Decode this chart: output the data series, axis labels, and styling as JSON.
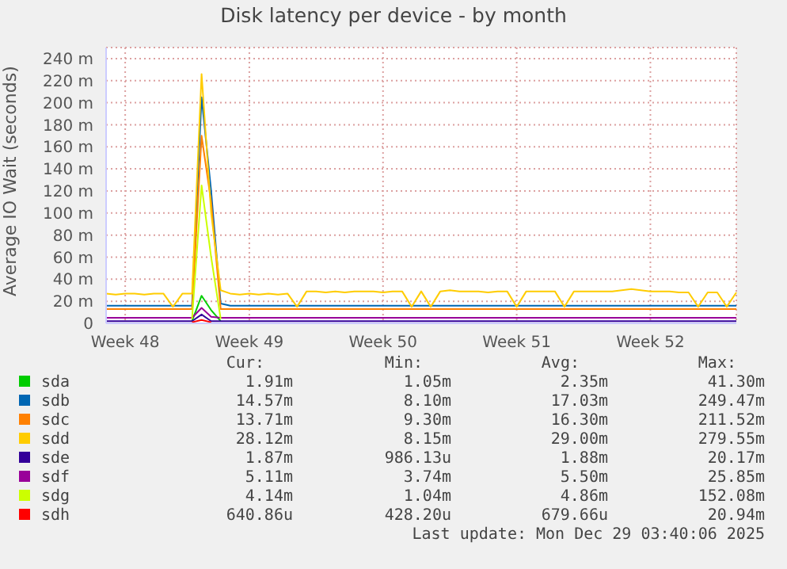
{
  "chart_data": {
    "type": "line",
    "title": "Disk latency per device - by month",
    "ylabel": "Average IO Wait (seconds)",
    "categories": [
      null,
      null,
      "Week 48",
      null,
      null,
      null,
      null,
      null,
      null,
      null,
      null,
      null,
      null,
      null,
      null,
      "Week 49",
      null,
      null,
      null,
      null,
      null,
      null,
      null,
      null,
      null,
      null,
      null,
      null,
      null,
      "Week 50",
      null,
      null,
      null,
      null,
      null,
      null,
      null,
      null,
      null,
      null,
      null,
      null,
      null,
      "Week 51",
      null,
      null,
      null,
      null,
      null,
      null,
      null,
      null,
      null,
      null,
      null,
      null,
      null,
      "Week 52",
      null,
      null,
      null,
      null,
      null,
      null,
      null,
      null,
      null
    ],
    "ylim": [
      0,
      250
    ],
    "yticks": [
      0,
      {
        "value": 20,
        "label": "20 m"
      },
      {
        "value": 40,
        "label": "40 m"
      },
      {
        "value": 60,
        "label": "60 m"
      },
      {
        "value": 80,
        "label": "80 m"
      },
      {
        "value": 100,
        "label": "100 m"
      },
      {
        "value": 120,
        "label": "120 m"
      },
      {
        "value": 140,
        "label": "140 m"
      },
      {
        "value": 160,
        "label": "160 m"
      },
      {
        "value": 180,
        "label": "180 m"
      },
      {
        "value": 200,
        "label": "200 m"
      },
      {
        "value": 220,
        "label": "220 m"
      },
      {
        "value": 240,
        "label": "240 m"
      }
    ],
    "grid": true,
    "legend": "bottom",
    "marker": "none",
    "line_style": "solid",
    "series": [
      {
        "name": "sda",
        "color": "#00cc00",
        "values": [
          null,
          null,
          null,
          null,
          null,
          null,
          null,
          null,
          null,
          2,
          25,
          12,
          2,
          null,
          null,
          null,
          null,
          null,
          null,
          null,
          null,
          null,
          null,
          null,
          null,
          null,
          null,
          null,
          null,
          null,
          null,
          null,
          null,
          null,
          null,
          null,
          null,
          null,
          null,
          null,
          null,
          null,
          null,
          null,
          null,
          null,
          null,
          null,
          null,
          null,
          null,
          null,
          null,
          null,
          null,
          null,
          null,
          null,
          null,
          null,
          null,
          null,
          null,
          null,
          null,
          null,
          null
        ]
      },
      {
        "name": "sdb",
        "color": "#0066b3",
        "values": [
          16,
          16,
          16,
          16,
          16,
          16,
          16,
          16,
          16,
          16,
          205,
          120,
          18,
          16,
          16,
          16,
          16,
          16,
          16,
          16,
          16,
          16,
          16,
          16,
          16,
          16,
          16,
          16,
          16,
          16,
          16,
          16,
          16,
          16,
          16,
          16,
          16,
          16,
          16,
          16,
          16,
          16,
          16,
          16,
          16,
          16,
          16,
          16,
          16,
          16,
          16,
          16,
          16,
          16,
          16,
          16,
          16,
          16,
          16,
          16,
          16,
          16,
          16,
          16,
          16,
          16,
          16
        ]
      },
      {
        "name": "sdc",
        "color": "#ff8000",
        "values": [
          13,
          13,
          13,
          13,
          13,
          13,
          13,
          13,
          13,
          13,
          170,
          110,
          13,
          13,
          13,
          13,
          13,
          13,
          13,
          13,
          13,
          13,
          13,
          13,
          13,
          13,
          13,
          13,
          13,
          13,
          13,
          13,
          13,
          13,
          13,
          13,
          13,
          13,
          13,
          13,
          13,
          13,
          13,
          13,
          13,
          13,
          13,
          13,
          13,
          13,
          13,
          13,
          13,
          13,
          13,
          13,
          13,
          13,
          13,
          13,
          13,
          13,
          13,
          13,
          13,
          13,
          13
        ]
      },
      {
        "name": "sdd",
        "color": "#ffcc00",
        "values": [
          27,
          26,
          27,
          27,
          26,
          27,
          27,
          15,
          27,
          27,
          226,
          100,
          30,
          27,
          26,
          27,
          26,
          27,
          26,
          27,
          15,
          29,
          29,
          28,
          29,
          28,
          29,
          29,
          29,
          28,
          29,
          29,
          15,
          29,
          15,
          29,
          30,
          29,
          29,
          29,
          28,
          29,
          29,
          15,
          29,
          29,
          29,
          29,
          15,
          29,
          29,
          29,
          29,
          29,
          30,
          31,
          30,
          29,
          29,
          29,
          28,
          28,
          15,
          28,
          28,
          15,
          28
        ]
      },
      {
        "name": "sde",
        "color": "#330099",
        "values": [
          2,
          2,
          2,
          2,
          2,
          2,
          2,
          2,
          2,
          2,
          8,
          2,
          2,
          2,
          2,
          2,
          2,
          2,
          2,
          2,
          2,
          2,
          2,
          2,
          2,
          2,
          2,
          2,
          2,
          2,
          2,
          2,
          2,
          2,
          2,
          2,
          2,
          2,
          2,
          2,
          2,
          2,
          2,
          2,
          2,
          2,
          2,
          2,
          2,
          2,
          2,
          2,
          2,
          2,
          2,
          2,
          2,
          2,
          2,
          2,
          2,
          2,
          2,
          2,
          2,
          2,
          2
        ]
      },
      {
        "name": "sdf",
        "color": "#990099",
        "values": [
          5,
          5,
          5,
          5,
          5,
          5,
          5,
          5,
          5,
          5,
          14,
          6,
          5,
          5,
          5,
          5,
          5,
          5,
          5,
          5,
          5,
          5,
          5,
          5,
          5,
          5,
          5,
          5,
          5,
          5,
          5,
          5,
          5,
          5,
          5,
          5,
          5,
          5,
          5,
          5,
          5,
          5,
          5,
          5,
          5,
          5,
          5,
          5,
          5,
          5,
          5,
          5,
          5,
          5,
          5,
          5,
          5,
          5,
          5,
          5,
          5,
          5,
          5,
          5,
          5,
          5,
          5
        ]
      },
      {
        "name": "sdg",
        "color": "#ccff00",
        "values": [
          null,
          null,
          null,
          null,
          null,
          null,
          null,
          null,
          null,
          4,
          125,
          60,
          4,
          null,
          null,
          null,
          null,
          null,
          null,
          null,
          null,
          null,
          null,
          null,
          null,
          null,
          null,
          null,
          null,
          null,
          null,
          null,
          null,
          null,
          null,
          null,
          null,
          null,
          null,
          null,
          null,
          null,
          null,
          null,
          null,
          null,
          null,
          null,
          null,
          null,
          null,
          null,
          null,
          null,
          null,
          null,
          null,
          null,
          null,
          null,
          null,
          null,
          null,
          null,
          null,
          null,
          null
        ]
      },
      {
        "name": "sdh",
        "color": "#ff0000",
        "values": [
          null,
          null,
          null,
          null,
          null,
          null,
          null,
          null,
          null,
          1,
          3,
          1,
          null,
          null,
          null,
          null,
          null,
          null,
          null,
          null,
          null,
          null,
          null,
          null,
          null,
          null,
          null,
          null,
          null,
          null,
          null,
          null,
          null,
          null,
          null,
          null,
          null,
          null,
          null,
          null,
          null,
          null,
          null,
          null,
          null,
          null,
          null,
          null,
          null,
          null,
          null,
          null,
          null,
          null,
          null,
          null,
          null,
          null,
          null,
          null,
          null,
          null,
          null,
          null,
          null,
          null,
          null
        ]
      }
    ],
    "annotations": [
      "Cur:",
      "Min:",
      "Avg:",
      "Max:",
      "1.91m",
      "1.05m",
      "2.35m",
      "41.30m",
      "14.57m",
      "8.10m",
      "17.03m",
      "249.47m",
      "13.71m",
      "9.30m",
      "16.30m",
      "211.52m",
      "28.12m",
      "8.15m",
      "29.00m",
      "279.55m",
      "1.87m",
      "986.13u",
      "1.88m",
      "20.17m",
      "5.11m",
      "3.74m",
      "5.50m",
      "25.85m",
      "4.14m",
      "1.04m",
      "4.86m",
      "152.08m",
      "640.86u",
      "428.20u",
      "679.66u",
      "20.94m",
      "Last update: Mon Dec 29 03:40:06 2025"
    ]
  }
}
